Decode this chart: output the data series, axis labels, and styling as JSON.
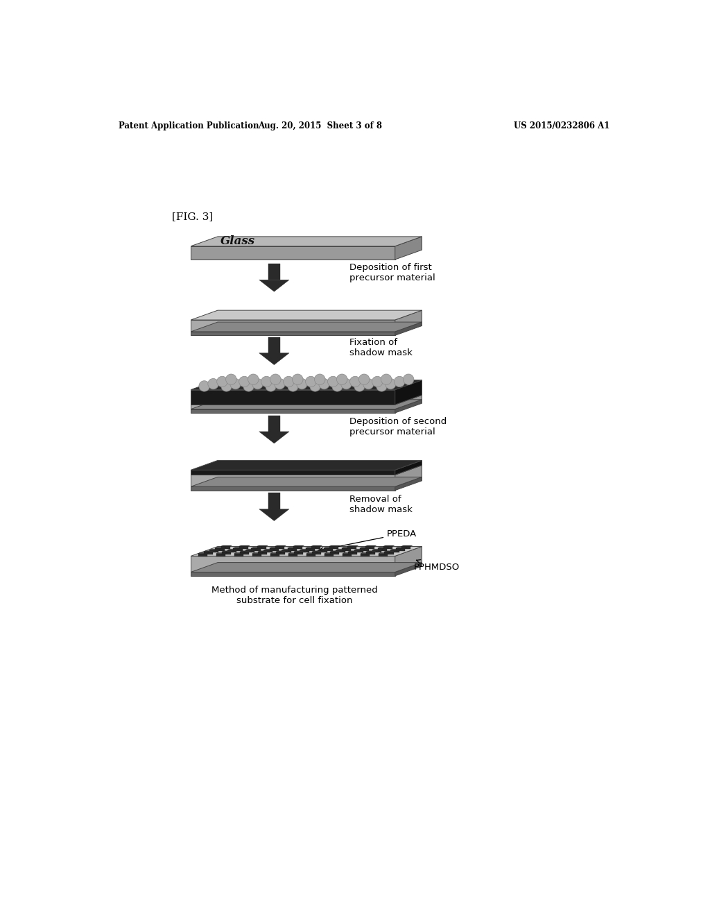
{
  "bg_color": "#ffffff",
  "header_left": "Patent Application Publication",
  "header_center": "Aug. 20, 2015  Sheet 3 of 8",
  "header_right": "US 2015/0232806 A1",
  "fig_label": "[FIG. 3]",
  "caption": "Method of manufacturing patterned\nsubstrate for cell fixation",
  "glass_label": "Glass",
  "step_labels": [
    "Deposition of first\nprecursor material",
    "Fixation of\nshadow mask",
    "Deposition of second\nprecursor material",
    "Removal of\nshadow mask"
  ],
  "ppeda_label": "PPEDA",
  "pphmdso_label": "PPHMDSO",
  "glass_top": "#b8b8b8",
  "glass_front": "#9a9a9a",
  "glass_right": "#888888",
  "coat_top": "#c8c8c8",
  "coat_front": "#aaaaaa",
  "coat_right": "#989898",
  "thin_top": "#888888",
  "thin_front": "#666666",
  "thin_right": "#555555",
  "dark_top": "#2a2a2a",
  "dark_front": "#1a1a1a",
  "dark_right": "#111111",
  "circle_fill": "#aaaaaa",
  "circle_edge": "#888888",
  "dot_fill": "#222222",
  "arrow_color": "#2a2a2a",
  "edge_color": "#444444",
  "text_color": "#000000"
}
